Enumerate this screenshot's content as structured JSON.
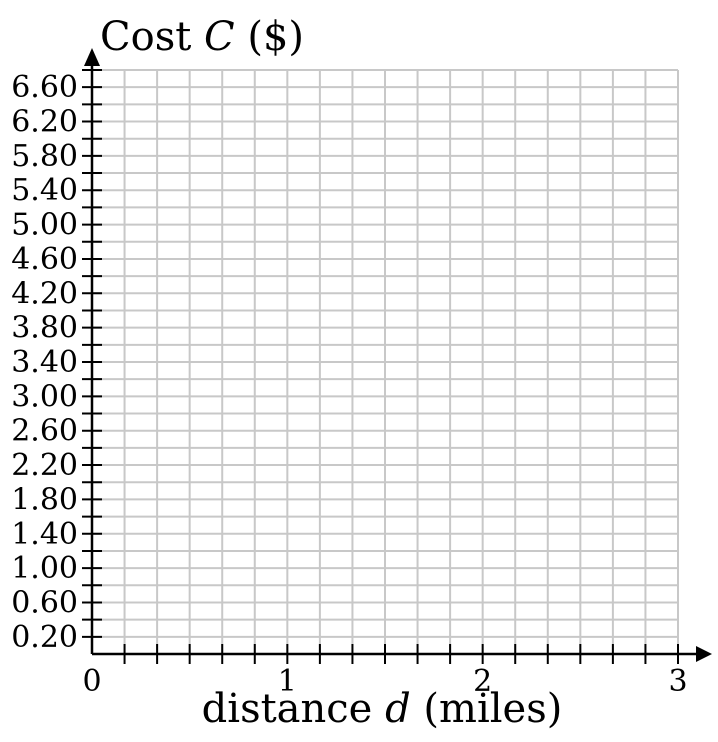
{
  "chart_data": {
    "type": "line",
    "title": "",
    "xlabel": {
      "pre": "distance ",
      "var": "d",
      "post": " (miles)"
    },
    "ylabel": {
      "pre": "Cost ",
      "var": "C",
      "post": " ($)"
    },
    "xlim": [
      0,
      3
    ],
    "ylim": [
      0,
      6.8
    ],
    "x_minor_step": 0.16666667,
    "y_minor_step": 0.2,
    "x_ticks": [
      {
        "value": 0,
        "label": "0"
      },
      {
        "value": 1,
        "label": "1"
      },
      {
        "value": 2,
        "label": "2"
      },
      {
        "value": 3,
        "label": "3"
      }
    ],
    "y_ticks": [
      {
        "value": 0.2,
        "label": "0.20"
      },
      {
        "value": 0.6,
        "label": "0.60"
      },
      {
        "value": 1.0,
        "label": "1.00"
      },
      {
        "value": 1.4,
        "label": "1.40"
      },
      {
        "value": 1.8,
        "label": "1.80"
      },
      {
        "value": 2.2,
        "label": "2.20"
      },
      {
        "value": 2.6,
        "label": "2.60"
      },
      {
        "value": 3.0,
        "label": "3.00"
      },
      {
        "value": 3.4,
        "label": "3.40"
      },
      {
        "value": 3.8,
        "label": "3.80"
      },
      {
        "value": 4.2,
        "label": "4.20"
      },
      {
        "value": 4.6,
        "label": "4.60"
      },
      {
        "value": 5.0,
        "label": "5.00"
      },
      {
        "value": 5.4,
        "label": "5.40"
      },
      {
        "value": 5.8,
        "label": "5.80"
      },
      {
        "value": 6.2,
        "label": "6.20"
      },
      {
        "value": 6.6,
        "label": "6.60"
      }
    ],
    "grid": true,
    "series": []
  },
  "colors": {
    "grid": "#c8c8c8",
    "axis": "#000000",
    "background": "#ffffff"
  }
}
